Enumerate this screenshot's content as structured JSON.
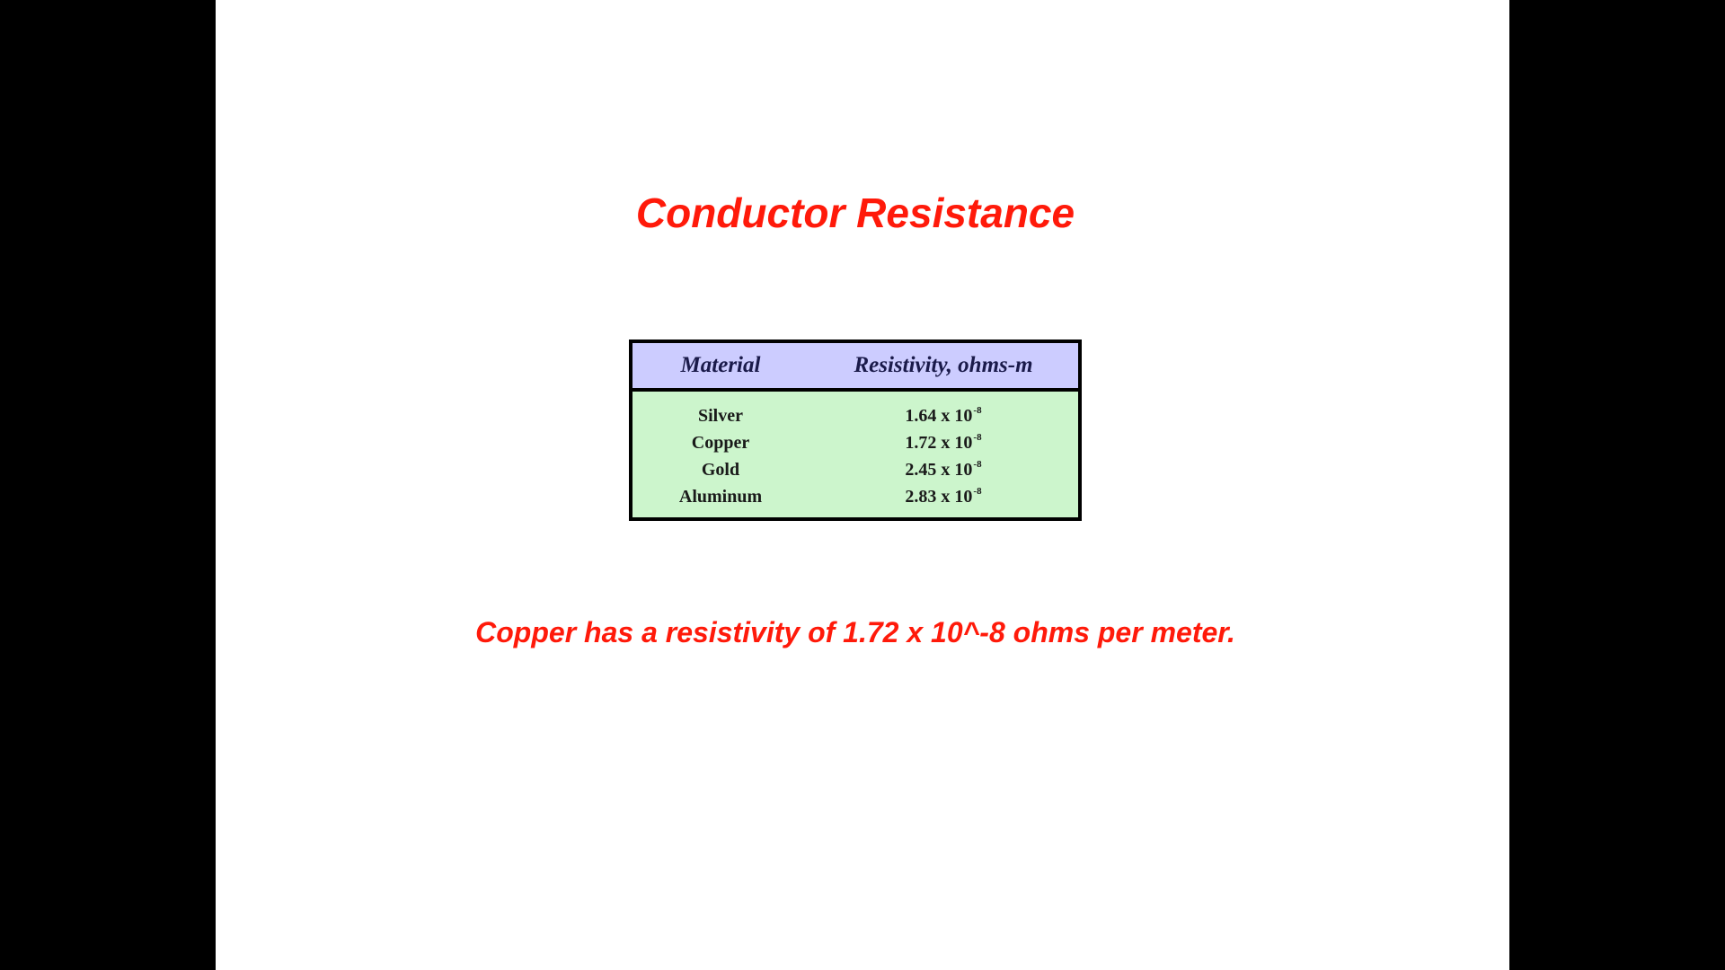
{
  "colors": {
    "background": "#000000",
    "slide": "#ffffff",
    "accent_red": "#ff1a0a",
    "table_header": "#ccccff",
    "table_body": "#ccf5cc"
  },
  "slide": {
    "title": "Conductor Resistance",
    "table": {
      "headers": {
        "material": "Material",
        "resistivity": "Resistivity, ohms-m"
      },
      "rows": [
        {
          "material": "Silver",
          "mantissa": "1.64 x 10",
          "exponent": "-8"
        },
        {
          "material": "Copper",
          "mantissa": "1.72 x 10",
          "exponent": "-8"
        },
        {
          "material": "Gold",
          "mantissa": "2.45 x 10",
          "exponent": "-8"
        },
        {
          "material": "Aluminum",
          "mantissa": "2.83 x 10",
          "exponent": "-8"
        }
      ]
    },
    "caption": "Copper has a resistivity of 1.72 x 10^-8 ohms per meter."
  }
}
